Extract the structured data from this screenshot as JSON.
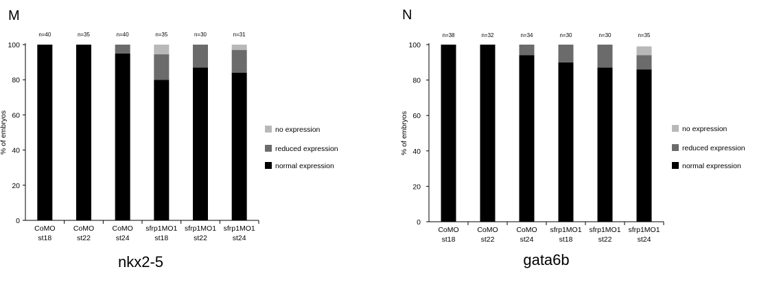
{
  "chart_data": [
    {
      "panel_label": "M",
      "type": "bar",
      "stacked": true,
      "title": "nkx2-5",
      "ylabel": "% of embryos",
      "xlabel": "",
      "ylim": [
        0,
        100
      ],
      "yticks": [
        0,
        20,
        40,
        60,
        80,
        100
      ],
      "grid": false,
      "legend_position": "right",
      "categories": [
        {
          "line1": "CoMO",
          "line2": "st18"
        },
        {
          "line1": "CoMO",
          "line2": "st22"
        },
        {
          "line1": "CoMO",
          "line2": "st24"
        },
        {
          "line1": "sfrp1MO1",
          "line2": "st18"
        },
        {
          "line1": "sfrp1MO1",
          "line2": "st22"
        },
        {
          "line1": "sfrp1MO1",
          "line2": "st24"
        }
      ],
      "n_labels": [
        "n=40",
        "n=35",
        "n=40",
        "n=35",
        "n=30",
        "n=31"
      ],
      "series": [
        {
          "name": "normal expression",
          "color": "#000000",
          "values": [
            100,
            100,
            95,
            80,
            87,
            84
          ]
        },
        {
          "name": "reduced expression",
          "color": "#6b6b6b",
          "values": [
            0,
            0,
            5,
            14.5,
            13,
            13
          ]
        },
        {
          "name": "no expression",
          "color": "#b8b8b8",
          "values": [
            0,
            0,
            0,
            5.5,
            0,
            3
          ]
        }
      ],
      "legend_order": [
        "no expression",
        "reduced expression",
        "normal expression"
      ]
    },
    {
      "panel_label": "N",
      "type": "bar",
      "stacked": true,
      "title": "gata6b",
      "ylabel": "% of embryos",
      "xlabel": "",
      "ylim": [
        0,
        100
      ],
      "yticks": [
        0,
        20,
        40,
        60,
        80,
        100
      ],
      "grid": false,
      "legend_position": "right",
      "categories": [
        {
          "line1": "CoMO",
          "line2": "st18"
        },
        {
          "line1": "CoMO",
          "line2": "st22"
        },
        {
          "line1": "CoMO",
          "line2": "st24"
        },
        {
          "line1": "sfrp1MO1",
          "line2": "st18"
        },
        {
          "line1": "sfrp1MO1",
          "line2": "st22"
        },
        {
          "line1": "sfrp1MO1",
          "line2": "st24"
        }
      ],
      "n_labels": [
        "n=38",
        "n=32",
        "n=34",
        "n=30",
        "n=30",
        "n=35"
      ],
      "series": [
        {
          "name": "normal expression",
          "color": "#000000",
          "values": [
            100,
            100,
            94,
            90,
            87,
            86
          ]
        },
        {
          "name": "reduced expression",
          "color": "#6b6b6b",
          "values": [
            0,
            0,
            6,
            10,
            13,
            8
          ]
        },
        {
          "name": "no expression",
          "color": "#b8b8b8",
          "values": [
            0,
            0,
            0,
            0,
            0,
            5
          ]
        }
      ],
      "legend_order": [
        "no expression",
        "reduced expression",
        "normal expression"
      ]
    }
  ]
}
